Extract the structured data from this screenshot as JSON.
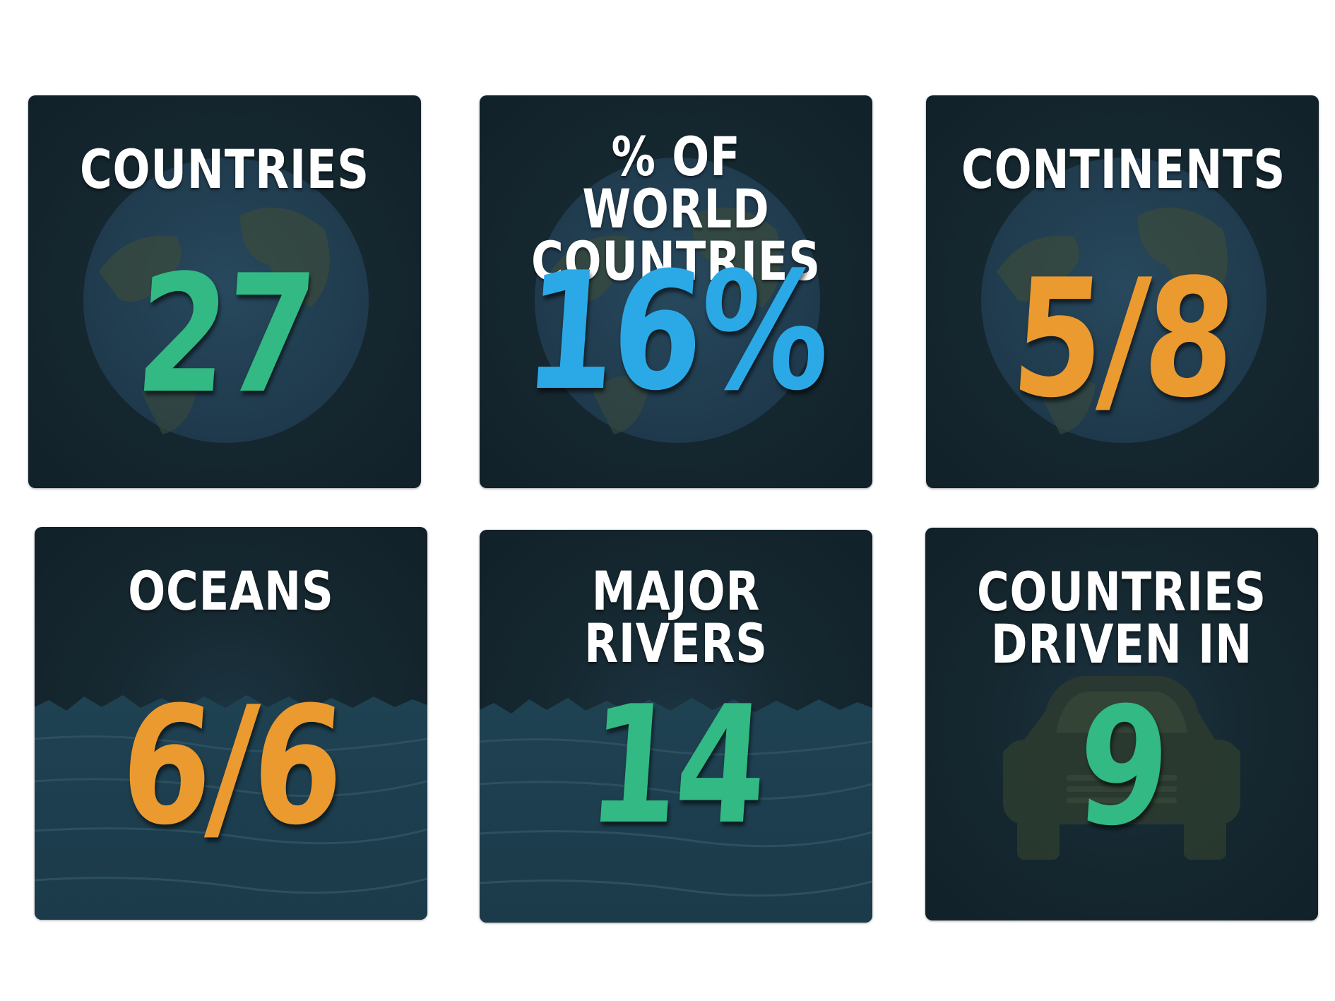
{
  "colors": {
    "card_background": "#15272f",
    "green": "#32b984",
    "blue": "#2ba9e6",
    "orange": "#eb9a2f",
    "label": "#ffffff"
  },
  "cards": [
    {
      "label_lines": [
        "COUNTRIES"
      ],
      "value": "27",
      "value_color": "green",
      "background_icon": "globe-icon"
    },
    {
      "label_lines": [
        "% OF WORLD",
        "COUNTRIES"
      ],
      "value": "16%",
      "value_color": "blue",
      "background_icon": "globe-icon"
    },
    {
      "label_lines": [
        "CONTINENTS"
      ],
      "value": "5/8",
      "value_color": "orange",
      "background_icon": "globe-icon"
    },
    {
      "label_lines": [
        "OCEANS"
      ],
      "value": "6/6",
      "value_color": "orange",
      "background_icon": "ocean-waves-icon"
    },
    {
      "label_lines": [
        "MAJOR RIVERS"
      ],
      "value": "14",
      "value_color": "green",
      "background_icon": "ocean-waves-icon"
    },
    {
      "label_lines": [
        "COUNTRIES",
        "DRIVEN IN"
      ],
      "value": "9",
      "value_color": "green",
      "background_icon": "car-icon"
    }
  ]
}
